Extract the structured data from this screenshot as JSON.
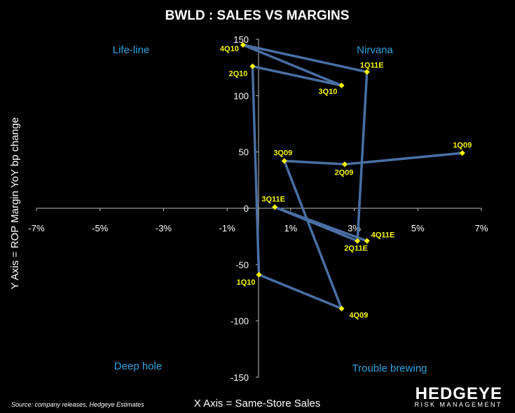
{
  "chart_data": {
    "type": "scatter",
    "title": "BWLD : SALES VS MARGINS",
    "xlabel": "X Axis = Same-Store Sales",
    "ylabel": "Y Axis = ROP Margin YoY bp change",
    "xlim": [
      -0.07,
      0.07
    ],
    "ylim": [
      -150,
      150
    ],
    "x_ticks": [
      -0.07,
      -0.05,
      -0.03,
      -0.01,
      0.01,
      0.03,
      0.05,
      0.07
    ],
    "x_tick_labels": [
      "-7%",
      "-5%",
      "-3%",
      "-1%",
      "1%",
      "3%",
      "5%",
      "7%"
    ],
    "y_ticks": [
      150,
      100,
      50,
      0,
      -50,
      -100,
      -150
    ],
    "y_tick_labels": [
      "150",
      "100",
      "50",
      "0",
      "-50",
      "-100",
      "-150"
    ],
    "grid": false,
    "series": [
      {
        "name": "BWLD path",
        "color": "#4a6fa5",
        "marker_color": "#ffff00",
        "points": [
          {
            "label": "1Q09",
            "x": 0.064,
            "y": 49
          },
          {
            "label": "2Q09",
            "x": 0.027,
            "y": 39
          },
          {
            "label": "3Q09",
            "x": 0.008,
            "y": 42
          },
          {
            "label": "4Q09",
            "x": 0.026,
            "y": -89
          },
          {
            "label": "1Q10",
            "x": 0.0,
            "y": -59
          },
          {
            "label": "2Q10",
            "x": -0.002,
            "y": 126
          },
          {
            "label": "3Q10",
            "x": 0.026,
            "y": 109
          },
          {
            "label": "4Q10",
            "x": -0.005,
            "y": 145
          },
          {
            "label": "1Q11E",
            "x": 0.034,
            "y": 121
          },
          {
            "label": "2Q11E",
            "x": 0.031,
            "y": -29
          },
          {
            "label": "3Q11E",
            "x": 0.005,
            "y": 1
          },
          {
            "label": "4Q11E",
            "x": 0.034,
            "y": -29
          }
        ]
      }
    ],
    "quadrant_labels": {
      "top_left": "Life-line",
      "top_right": "Nirvana",
      "bottom_left": "Deep  hole",
      "bottom_right": "Trouble brewing"
    },
    "source": "Source: company releases, Hedgeye Estimates"
  },
  "logo": {
    "name": "HEDGEYE",
    "sub": "RISK MANAGEMENT"
  }
}
